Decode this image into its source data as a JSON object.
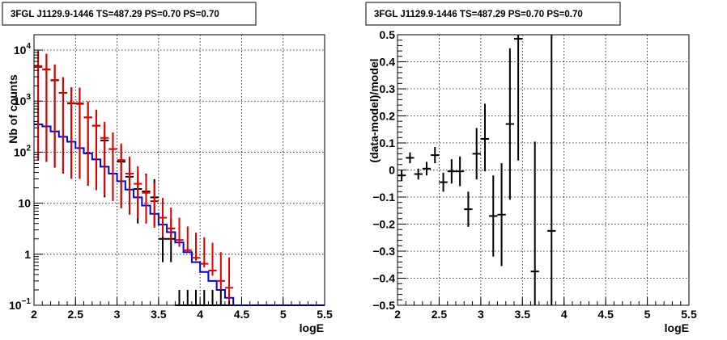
{
  "colors": {
    "data": "#000000",
    "model": "#e00000",
    "background": "#0000dd",
    "grid": "#000000"
  },
  "chart_data": [
    {
      "type": "scatter",
      "title": "3FGL J1129.9-1446 TS=487.29 PS=0.70 PS=0.70",
      "xlabel": "logE",
      "ylabel": "Nb of counts",
      "xlim": [
        2,
        5.5
      ],
      "ylim": [
        0.1,
        20000
      ],
      "yscale": "log",
      "grid": true,
      "xticks": [
        "2",
        "2.5",
        "3",
        "3.5",
        "4",
        "4.5",
        "5",
        "5.5"
      ],
      "yticks": [
        "10^-1",
        "1",
        "10",
        "10^2",
        "10^3",
        "10^4"
      ],
      "bin_width": 0.1,
      "series": [
        {
          "role": "data",
          "x": [
            2.05,
            2.15,
            2.25,
            2.35,
            2.45,
            2.55,
            2.65,
            2.75,
            2.85,
            2.95,
            3.05,
            3.15,
            3.25,
            3.35,
            3.45,
            3.55,
            3.65,
            3.75,
            3.85,
            3.95,
            4.05,
            4.15,
            4.25,
            4.35
          ],
          "y": [
            4700,
            4200,
            2550,
            1450,
            900,
            900,
            480,
            330,
            170,
            115,
            65,
            33,
            19,
            17,
            13,
            2,
            2,
            0.1,
            0.1,
            0.1,
            0.1,
            0.1,
            0.1,
            0.1
          ],
          "yerr_low": [
            4631,
            4135,
            2500,
            1412,
            870,
            870,
            458,
            312,
            157,
            104,
            57,
            27,
            15,
            13,
            9.4,
            1.3,
            1.3,
            0,
            0,
            0,
            0,
            0,
            0,
            0
          ],
          "yerr_high": [
            4769,
            4265,
            2601,
            1488,
            930,
            930,
            502,
            348,
            183,
            126,
            73,
            39,
            23,
            21,
            16.6,
            3,
            3,
            0.1,
            0.1,
            0.1,
            0.1,
            0.1,
            0.1,
            0.1
          ]
        },
        {
          "role": "model",
          "x": [
            2.05,
            2.15,
            2.25,
            2.35,
            2.45,
            2.55,
            2.65,
            2.75,
            2.85,
            2.95,
            3.05,
            3.15,
            3.25,
            3.35,
            3.45,
            3.55,
            3.65,
            3.75,
            3.85,
            3.95,
            4.05,
            4.15,
            4.25,
            4.35
          ],
          "y": [
            4850,
            4150,
            2600,
            1450,
            920,
            880,
            480,
            330,
            190,
            115,
            70,
            38,
            24,
            16,
            11,
            5.2,
            3.2,
            1.9,
            1.2,
            0.85,
            0.65,
            0.48,
            0.3,
            0.22
          ],
          "yerr_low": [
            4780,
            4086,
            2549,
            1412,
            890,
            850,
            458,
            312,
            176,
            104,
            62,
            32,
            19,
            12,
            7.7,
            3,
            1.4,
            0.5,
            0.1,
            0.1,
            0.1,
            0.1,
            0.1,
            0.1
          ],
          "yerr_high": [
            4920,
            4214,
            2651,
            1488,
            950,
            910,
            502,
            348,
            204,
            126,
            78,
            44,
            29,
            20,
            14.3,
            7.5,
            5,
            3.3,
            2.3,
            1.8,
            1.5,
            1.2,
            0.8,
            0.65
          ]
        },
        {
          "role": "background",
          "type": "step",
          "x": [
            2.05,
            2.15,
            2.25,
            2.35,
            2.45,
            2.55,
            2.65,
            2.75,
            2.85,
            2.95,
            3.05,
            3.15,
            3.25,
            3.35,
            3.45,
            3.55,
            3.65,
            3.75,
            3.85,
            3.95,
            4.05,
            4.15,
            4.25,
            4.35,
            4.45,
            4.55,
            4.65,
            4.75,
            4.85,
            4.95,
            5.05,
            5.15,
            5.25,
            5.35,
            5.45
          ],
          "y": [
            350,
            320,
            255,
            200,
            160,
            120,
            95,
            72,
            52,
            38,
            27,
            18.5,
            13,
            9,
            6.2,
            3.8,
            2.7,
            1.7,
            1.1,
            0.7,
            0.45,
            0.3,
            0.2,
            0.14,
            0.1,
            0.1,
            0.1,
            0.1,
            0.1,
            0.1,
            0.1,
            0.1,
            0.1,
            0.1,
            0.1
          ]
        }
      ]
    },
    {
      "type": "scatter",
      "title": "3FGL J1129.9-1446 TS=487.29 PS=0.70 PS=0.70",
      "xlabel": "logE",
      "ylabel": "(data-model)/model",
      "xlim": [
        2,
        5.5
      ],
      "ylim": [
        -0.5,
        0.5
      ],
      "grid": true,
      "xticks": [
        "2",
        "2.5",
        "3",
        "3.5",
        "4",
        "4.5",
        "5",
        "5.5"
      ],
      "yticks": [
        "−0.5",
        "−0.4",
        "−0.3",
        "−0.2",
        "−0.1",
        "0",
        "0.1",
        "0.2",
        "0.3",
        "0.4",
        "0.5"
      ],
      "bin_width": 0.1,
      "series": [
        {
          "role": "residual",
          "x": [
            2.05,
            2.15,
            2.25,
            2.35,
            2.45,
            2.55,
            2.65,
            2.75,
            2.85,
            2.95,
            3.05,
            3.15,
            3.25,
            3.35,
            3.45,
            3.65,
            3.85
          ],
          "y": [
            -0.02,
            0.045,
            -0.015,
            0.005,
            0.055,
            -0.045,
            -0.005,
            -0.005,
            -0.145,
            0.06,
            0.115,
            -0.17,
            -0.165,
            0.17,
            0.485,
            -0.375,
            -0.225
          ],
          "yerr_low": [
            0.02,
            0.02,
            0.02,
            0.025,
            0.03,
            0.035,
            0.045,
            0.055,
            0.065,
            0.095,
            0.12,
            0.15,
            0.19,
            0.28,
            0.45,
            0.6,
            0.8
          ],
          "yerr_high": [
            0.02,
            0.02,
            0.02,
            0.025,
            0.03,
            0.035,
            0.045,
            0.055,
            0.065,
            0.095,
            0.13,
            0.15,
            0.19,
            0.28,
            0.45,
            0.48,
            0.8
          ]
        }
      ]
    }
  ]
}
